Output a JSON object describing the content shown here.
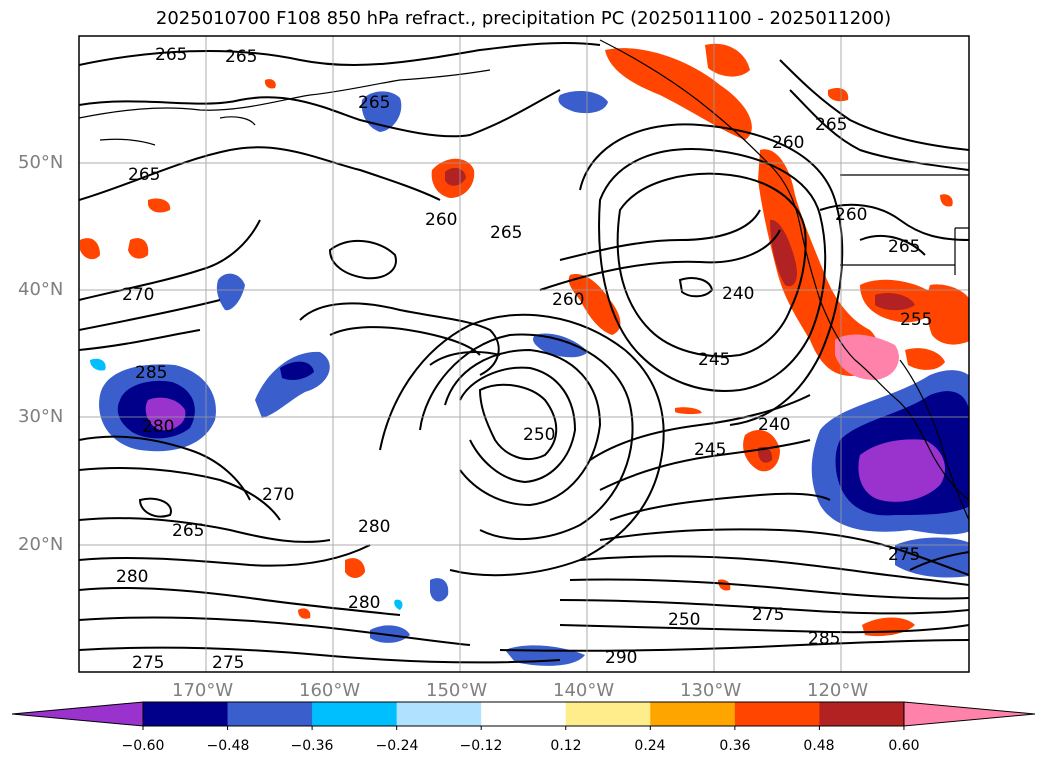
{
  "title": "2025010700 F108 850 hPa refract., precipitation PC (2025011100 - 2025011200)",
  "lat_labels": [
    "50°N",
    "40°N",
    "30°N",
    "20°N"
  ],
  "lon_labels": [
    "170°W",
    "160°W",
    "150°W",
    "140°W",
    "130°W",
    "120°W"
  ],
  "contour_labels": [
    "265",
    "265",
    "265",
    "265",
    "270",
    "285",
    "280",
    "270",
    "265",
    "280",
    "275",
    "275",
    "260",
    "265",
    "260",
    "250",
    "245",
    "245",
    "240",
    "240",
    "280",
    "275",
    "285",
    "290",
    "280",
    "260",
    "265",
    "260",
    "265",
    "275",
    "250",
    "255"
  ],
  "colorbar": {
    "ticks": [
      "−0.60",
      "−0.48",
      "−0.36",
      "−0.24",
      "−0.12",
      "0.12",
      "0.24",
      "0.36",
      "0.48",
      "0.60"
    ],
    "colors": [
      "#9a32cd",
      "#00008b",
      "#3a5fcd",
      "#00bfff",
      "#b0e2ff",
      "#ffffff",
      "#ffec8b",
      "#ffa500",
      "#ff4500",
      "#b22222",
      "#ff82ab"
    ]
  }
}
